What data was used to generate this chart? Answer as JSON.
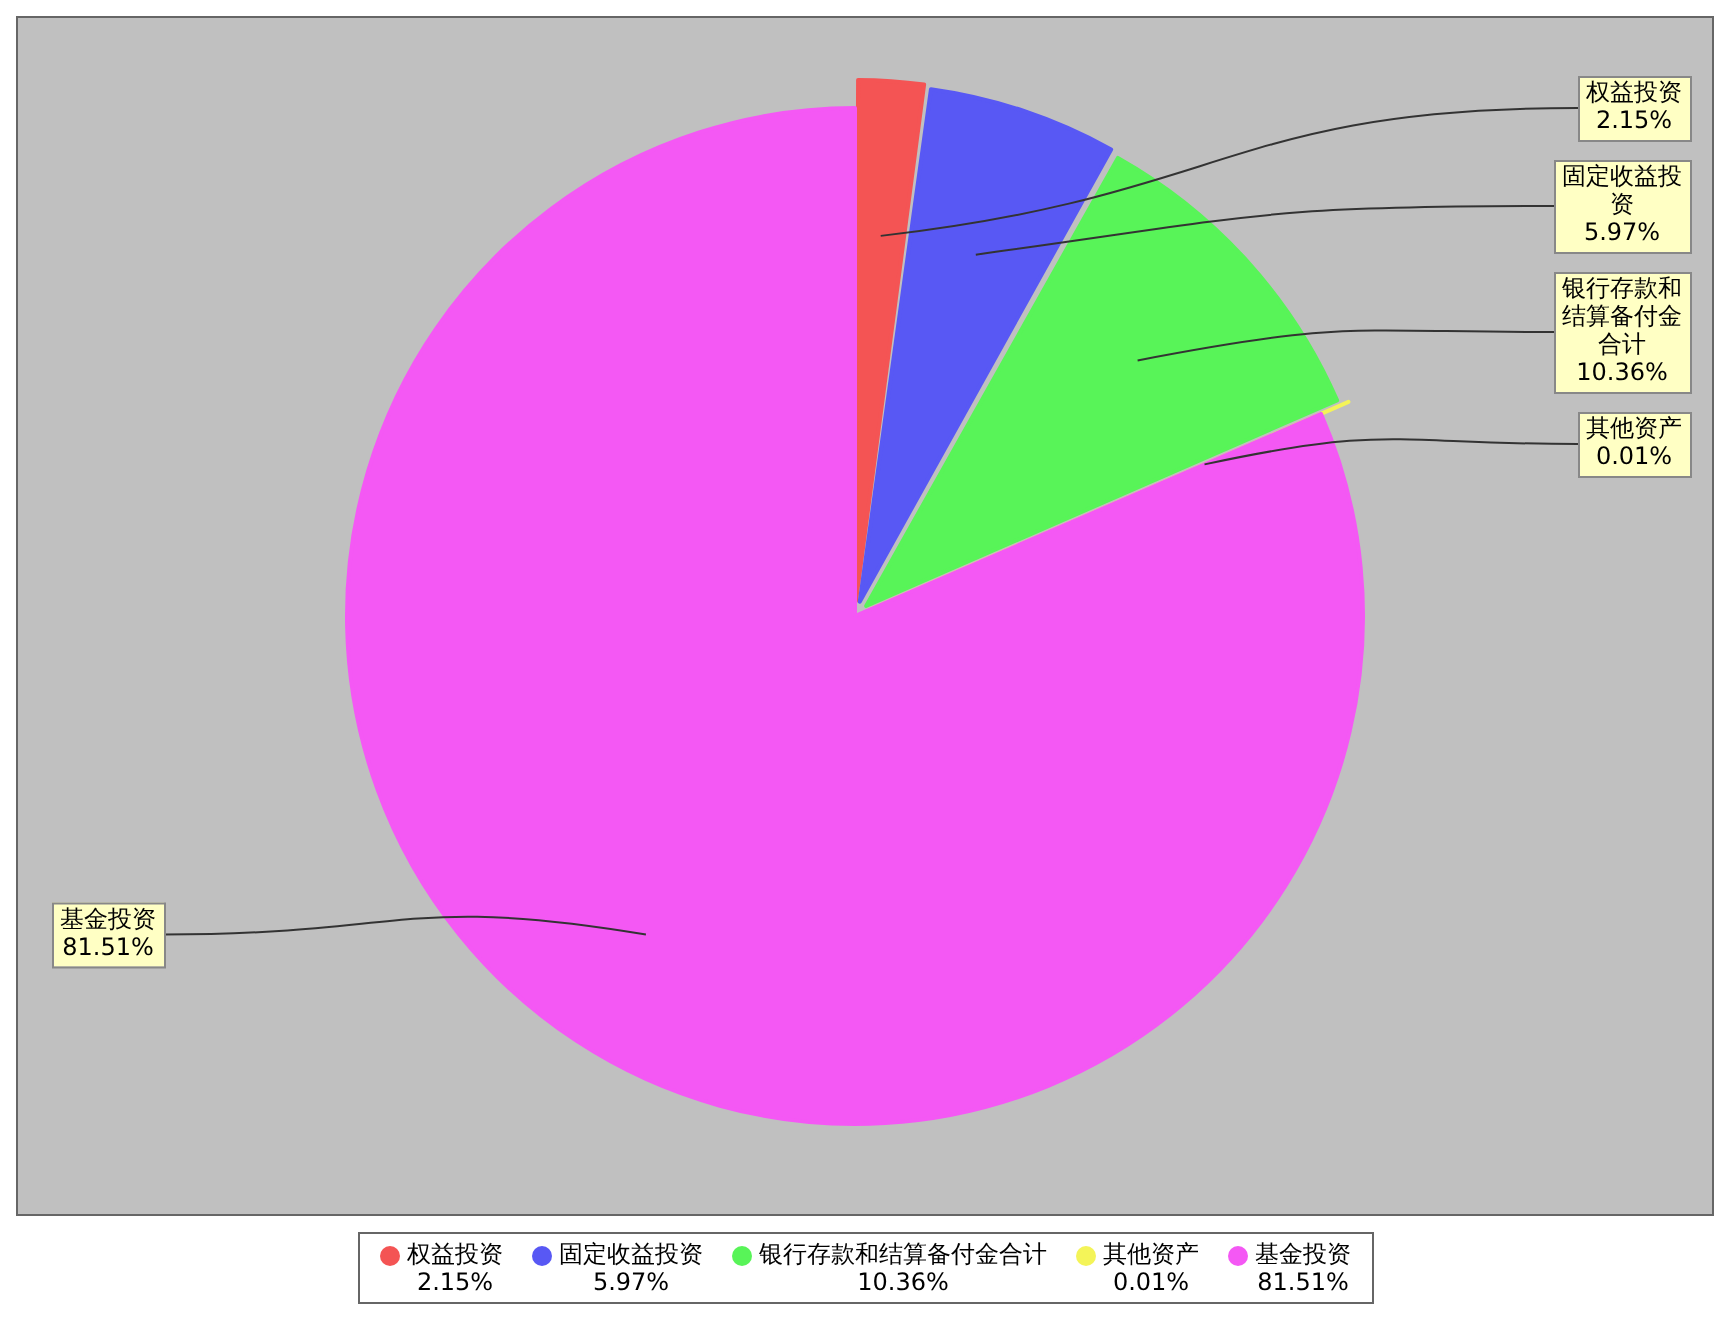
{
  "chart_data": {
    "type": "pie",
    "categories": [
      "权益投资",
      "固定收益投资",
      "银行存款和结算备付金合计",
      "其他资产",
      "基金投资"
    ],
    "values": [
      2.15,
      5.97,
      10.36,
      0.01,
      81.51
    ],
    "value_labels": [
      "2.15%",
      "5.97%",
      "10.36%",
      "0.01%",
      "81.51%"
    ],
    "colors": [
      "#f45454",
      "#5858f4",
      "#58f458",
      "#f4f458",
      "#f458f4"
    ],
    "legend": "bottom"
  }
}
